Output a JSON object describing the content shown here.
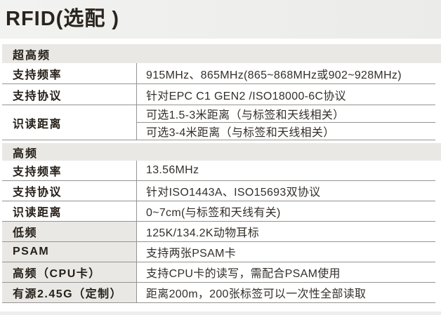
{
  "page": {
    "title": "RFID(选配 )"
  },
  "table": {
    "sections": [
      {
        "header": "超高频",
        "rows": [
          {
            "label": "支持频率",
            "label_shaded": false,
            "values": [
              "915MHz、865MHz(865~868MHz或902~928MHz)"
            ]
          },
          {
            "label": "支持协议",
            "label_shaded": false,
            "values": [
              "针对EPC C1 GEN2 /ISO18000-6C协议"
            ]
          },
          {
            "label": "识读距离",
            "label_shaded": false,
            "values": [
              "可选1.5-3米距离（与标签和天线相关）",
              "可选3-4米距离（与标签和天线相关）"
            ]
          }
        ]
      },
      {
        "header": "高频",
        "rows": [
          {
            "label": "支持频率",
            "label_shaded": false,
            "values": [
              "13.56MHz"
            ]
          },
          {
            "label": "支持协议",
            "label_shaded": false,
            "values": [
              "针对ISO1443A、ISO15693双协议"
            ]
          },
          {
            "label": "识读距离",
            "label_shaded": false,
            "values": [
              "0~7cm(与标签和天线有关)"
            ]
          },
          {
            "label": "低频",
            "label_shaded": true,
            "values": [
              "125K/134.2K动物耳标"
            ]
          },
          {
            "label": "PSAM",
            "label_shaded": true,
            "values": [
              "支持两张PSAM卡"
            ]
          },
          {
            "label": "高频（CPU卡）",
            "label_shaded": true,
            "values": [
              "支持CPU卡的读写，需配合PSAM使用"
            ]
          },
          {
            "label": "有源2.45G（定制）",
            "label_shaded": true,
            "values": [
              "距离200m，200张标签可以一次性全部读取"
            ]
          }
        ]
      }
    ]
  },
  "colors": {
    "title_band": "#ededeb",
    "section_band": "#e9e8e5",
    "shaded_label": "#e9e8e5",
    "border": "#949492",
    "text": "#2a241f",
    "background": "#ffffff"
  }
}
